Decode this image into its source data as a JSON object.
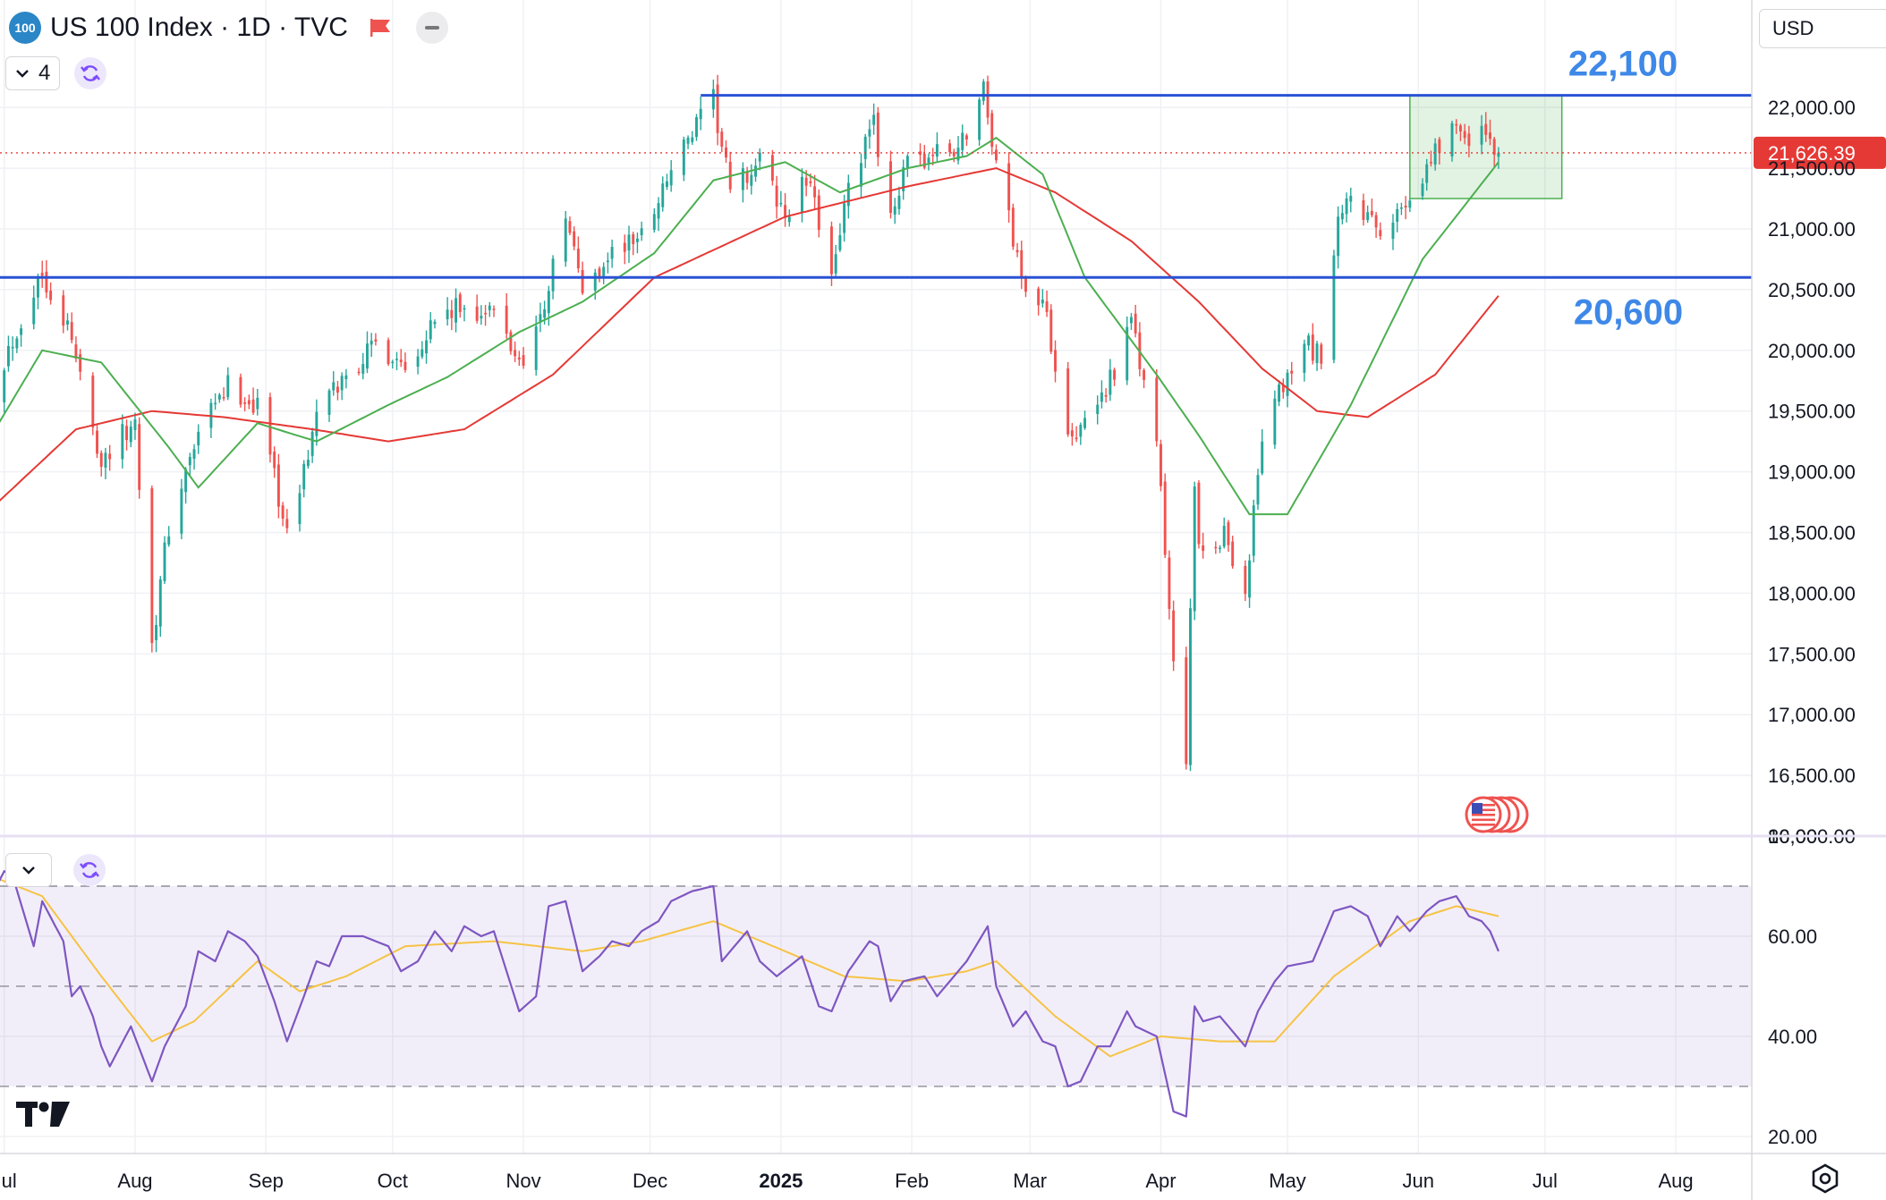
{
  "header": {
    "symbol_badge": "100",
    "title": "US 100 Index · 1D · TVC",
    "indicator_count": "4",
    "currency": "USD"
  },
  "icons": {
    "flag": "red-flag-icon",
    "minus": "minus-icon",
    "chevron": "chevron-down-icon",
    "sync": "sync-icon",
    "events": "us-flag-events-icon",
    "logo": "tradingview-logo-icon",
    "settings": "gear-icon"
  },
  "colors": {
    "up": "#26a69a",
    "down": "#ef5350",
    "ma_fast": "#4caf50",
    "ma_slow": "#e53935",
    "level_line": "#2a52d4",
    "level_text": "#3e88e8",
    "rsi": "#7e57c2",
    "rsi_ma": "#f6c344",
    "price_tag": "#e53935",
    "box": "#4caf50"
  },
  "chart_data": [
    {
      "type": "candlestick",
      "title": "US 100 Index · 1D · TVC",
      "x_tick_labels": [
        "Jul",
        "Aug",
        "Sep",
        "Oct",
        "Nov",
        "Dec",
        "2025",
        "Feb",
        "Mar",
        "Apr",
        "May",
        "Jun",
        "Jul",
        "Aug"
      ],
      "x_range": [
        "2024-06-30",
        "2025-08-19"
      ],
      "y_tick_labels": [
        "22,000.00",
        "21,500.00",
        "21,000.00",
        "20,500.00",
        "20,000.00",
        "19,500.00",
        "19,000.00",
        "18,500.00",
        "18,000.00",
        "17,500.00",
        "17,000.00",
        "16,500.00",
        "16,000.00"
      ],
      "ylim": [
        16000,
        22885
      ],
      "grid": true,
      "last_price": 21626.39,
      "last_price_label": "21,626.39",
      "anchors": [
        [
          "2024-06-28",
          19700
        ],
        [
          "2024-07-10",
          20650
        ],
        [
          "2024-07-16",
          20200
        ],
        [
          "2024-07-24",
          19100
        ],
        [
          "2024-08-01",
          19400
        ],
        [
          "2024-08-05",
          17600
        ],
        [
          "2024-08-09",
          18550
        ],
        [
          "2024-08-16",
          19300
        ],
        [
          "2024-08-23",
          19700
        ],
        [
          "2024-08-30",
          19550
        ],
        [
          "2024-09-03",
          19000
        ],
        [
          "2024-09-06",
          18450
        ],
        [
          "2024-09-13",
          19450
        ],
        [
          "2024-09-20",
          19800
        ],
        [
          "2024-09-27",
          20050
        ],
        [
          "2024-10-04",
          19900
        ],
        [
          "2024-10-11",
          20250
        ],
        [
          "2024-10-18",
          20350
        ],
        [
          "2024-10-25",
          20300
        ],
        [
          "2024-10-31",
          19900
        ],
        [
          "2024-11-05",
          20250
        ],
        [
          "2024-11-11",
          21100
        ],
        [
          "2024-11-15",
          20500
        ],
        [
          "2024-11-22",
          20800
        ],
        [
          "2024-11-29",
          20950
        ],
        [
          "2024-12-06",
          21500
        ],
        [
          "2024-12-16",
          22050
        ],
        [
          "2024-12-20",
          21300
        ],
        [
          "2024-12-27",
          21550
        ],
        [
          "2025-01-02",
          21100
        ],
        [
          "2025-01-07",
          21400
        ],
        [
          "2025-01-13",
          20700
        ],
        [
          "2025-01-17",
          21300
        ],
        [
          "2025-01-23",
          21850
        ],
        [
          "2025-01-27",
          21150
        ],
        [
          "2025-01-31",
          21500
        ],
        [
          "2025-02-05",
          21600
        ],
        [
          "2025-02-12",
          21650
        ],
        [
          "2025-02-18",
          22150
        ],
        [
          "2025-02-21",
          21550
        ],
        [
          "2025-02-27",
          20600
        ],
        [
          "2025-03-04",
          20400
        ],
        [
          "2025-03-10",
          19400
        ],
        [
          "2025-03-13",
          19300
        ],
        [
          "2025-03-19",
          19700
        ],
        [
          "2025-03-25",
          20200
        ],
        [
          "2025-03-31",
          19250
        ],
        [
          "2025-04-04",
          17400
        ],
        [
          "2025-04-07",
          16700
        ],
        [
          "2025-04-09",
          18900
        ],
        [
          "2025-04-10",
          18300
        ],
        [
          "2025-04-16",
          18500
        ],
        [
          "2025-04-21",
          18000
        ],
        [
          "2025-04-25",
          19300
        ],
        [
          "2025-04-30",
          19700
        ],
        [
          "2025-05-06",
          20050
        ],
        [
          "2025-05-09",
          19900
        ],
        [
          "2025-05-13",
          21000
        ],
        [
          "2025-05-16",
          21300
        ],
        [
          "2025-05-23",
          20900
        ],
        [
          "2025-05-30",
          21300
        ],
        [
          "2025-06-06",
          21700
        ],
        [
          "2025-06-11",
          21900
        ],
        [
          "2025-06-13",
          21650
        ],
        [
          "2025-06-17",
          21800
        ],
        [
          "2025-06-20",
          21626
        ]
      ],
      "ma_fast_anchors": [
        [
          "2024-06-28",
          19300
        ],
        [
          "2024-07-10",
          20000
        ],
        [
          "2024-07-24",
          19900
        ],
        [
          "2024-08-09",
          19200
        ],
        [
          "2024-08-16",
          18870
        ],
        [
          "2024-08-30",
          19400
        ],
        [
          "2024-09-13",
          19250
        ],
        [
          "2024-09-30",
          19550
        ],
        [
          "2024-10-14",
          19780
        ],
        [
          "2024-10-31",
          20150
        ],
        [
          "2024-11-15",
          20400
        ],
        [
          "2024-12-02",
          20800
        ],
        [
          "2024-12-16",
          21400
        ],
        [
          "2025-01-02",
          21550
        ],
        [
          "2025-01-15",
          21300
        ],
        [
          "2025-01-31",
          21500
        ],
        [
          "2025-02-14",
          21600
        ],
        [
          "2025-02-21",
          21750
        ],
        [
          "2025-03-04",
          21450
        ],
        [
          "2025-03-14",
          20600
        ],
        [
          "2025-03-31",
          19800
        ],
        [
          "2025-04-10",
          19300
        ],
        [
          "2025-04-22",
          18650
        ],
        [
          "2025-05-01",
          18650
        ],
        [
          "2025-05-16",
          19550
        ],
        [
          "2025-06-02",
          20750
        ],
        [
          "2025-06-20",
          21550
        ]
      ],
      "ma_slow_anchors": [
        [
          "2024-06-28",
          18700
        ],
        [
          "2024-07-18",
          19350
        ],
        [
          "2024-08-05",
          19500
        ],
        [
          "2024-08-22",
          19450
        ],
        [
          "2024-09-12",
          19350
        ],
        [
          "2024-09-30",
          19250
        ],
        [
          "2024-10-18",
          19350
        ],
        [
          "2024-11-08",
          19800
        ],
        [
          "2024-12-02",
          20600
        ],
        [
          "2025-01-02",
          21100
        ],
        [
          "2025-01-31",
          21350
        ],
        [
          "2025-02-21",
          21500
        ],
        [
          "2025-03-07",
          21300
        ],
        [
          "2025-03-25",
          20900
        ],
        [
          "2025-04-10",
          20400
        ],
        [
          "2025-04-25",
          19850
        ],
        [
          "2025-05-08",
          19500
        ],
        [
          "2025-05-20",
          19450
        ],
        [
          "2025-06-05",
          19800
        ],
        [
          "2025-06-20",
          20450
        ]
      ],
      "levels": [
        {
          "label": "22,100",
          "value": 22100,
          "from": "2024-12-13",
          "to": "2025-08-19"
        },
        {
          "label": "20,600",
          "value": 20600,
          "from": "2024-06-30",
          "to": "2025-08-19"
        }
      ],
      "range_box": {
        "x0": "2025-05-30",
        "x1": "2025-07-05",
        "y0": 21250,
        "y1": 22100
      }
    },
    {
      "type": "line",
      "y_tick_labels": [
        "80.00",
        "60.00",
        "40.00",
        "20.00"
      ],
      "ylim": [
        16.6,
        80
      ],
      "band": [
        30,
        70
      ],
      "midline": 50,
      "rsi_anchors": [
        [
          "2024-06-28",
          68
        ],
        [
          "2024-07-01",
          73
        ],
        [
          "2024-07-03",
          72
        ],
        [
          "2024-07-08",
          58
        ],
        [
          "2024-07-10",
          67
        ],
        [
          "2024-07-15",
          59
        ],
        [
          "2024-07-17",
          48
        ],
        [
          "2024-07-19",
          50
        ],
        [
          "2024-07-22",
          44
        ],
        [
          "2024-07-24",
          38
        ],
        [
          "2024-07-26",
          34
        ],
        [
          "2024-07-31",
          42
        ],
        [
          "2024-08-05",
          31
        ],
        [
          "2024-08-08",
          38
        ],
        [
          "2024-08-13",
          46
        ],
        [
          "2024-08-16",
          57
        ],
        [
          "2024-08-20",
          55
        ],
        [
          "2024-08-23",
          61
        ],
        [
          "2024-08-27",
          59
        ],
        [
          "2024-08-30",
          56
        ],
        [
          "2024-09-03",
          47
        ],
        [
          "2024-09-06",
          39
        ],
        [
          "2024-09-10",
          48
        ],
        [
          "2024-09-13",
          55
        ],
        [
          "2024-09-16",
          54
        ],
        [
          "2024-09-19",
          60
        ],
        [
          "2024-09-24",
          60
        ],
        [
          "2024-09-30",
          58
        ],
        [
          "2024-10-03",
          53
        ],
        [
          "2024-10-07",
          55
        ],
        [
          "2024-10-11",
          61
        ],
        [
          "2024-10-15",
          57
        ],
        [
          "2024-10-18",
          62
        ],
        [
          "2024-10-22",
          60
        ],
        [
          "2024-10-25",
          61
        ],
        [
          "2024-10-31",
          45
        ],
        [
          "2024-11-04",
          48
        ],
        [
          "2024-11-07",
          66
        ],
        [
          "2024-11-11",
          67
        ],
        [
          "2024-11-15",
          53
        ],
        [
          "2024-11-19",
          56
        ],
        [
          "2024-11-22",
          59
        ],
        [
          "2024-11-26",
          58
        ],
        [
          "2024-11-29",
          61
        ],
        [
          "2024-12-03",
          63
        ],
        [
          "2024-12-06",
          67
        ],
        [
          "2024-12-11",
          69
        ],
        [
          "2024-12-16",
          70
        ],
        [
          "2024-12-18",
          55
        ],
        [
          "2024-12-20",
          57
        ],
        [
          "2024-12-24",
          61
        ],
        [
          "2024-12-27",
          55
        ],
        [
          "2024-12-31",
          52
        ],
        [
          "2025-01-06",
          56
        ],
        [
          "2025-01-10",
          46
        ],
        [
          "2025-01-13",
          45
        ],
        [
          "2025-01-17",
          53
        ],
        [
          "2025-01-22",
          59
        ],
        [
          "2025-01-24",
          58
        ],
        [
          "2025-01-27",
          47
        ],
        [
          "2025-01-30",
          51
        ],
        [
          "2025-02-04",
          52
        ],
        [
          "2025-02-07",
          48
        ],
        [
          "2025-02-11",
          52
        ],
        [
          "2025-02-14",
          55
        ],
        [
          "2025-02-19",
          62
        ],
        [
          "2025-02-21",
          50
        ],
        [
          "2025-02-25",
          42
        ],
        [
          "2025-02-28",
          45
        ],
        [
          "2025-03-04",
          39
        ],
        [
          "2025-03-07",
          38
        ],
        [
          "2025-03-10",
          30
        ],
        [
          "2025-03-13",
          31
        ],
        [
          "2025-03-17",
          38
        ],
        [
          "2025-03-20",
          38
        ],
        [
          "2025-03-24",
          45
        ],
        [
          "2025-03-26",
          42
        ],
        [
          "2025-03-31",
          40
        ],
        [
          "2025-04-04",
          25
        ],
        [
          "2025-04-07",
          24
        ],
        [
          "2025-04-09",
          46
        ],
        [
          "2025-04-11",
          43
        ],
        [
          "2025-04-15",
          44
        ],
        [
          "2025-04-21",
          38
        ],
        [
          "2025-04-24",
          45
        ],
        [
          "2025-04-28",
          51
        ],
        [
          "2025-05-01",
          54
        ],
        [
          "2025-05-07",
          55
        ],
        [
          "2025-05-12",
          65
        ],
        [
          "2025-05-16",
          66
        ],
        [
          "2025-05-20",
          64
        ],
        [
          "2025-05-23",
          58
        ],
        [
          "2025-05-27",
          64
        ],
        [
          "2025-05-30",
          61
        ],
        [
          "2025-06-03",
          65
        ],
        [
          "2025-06-06",
          67
        ],
        [
          "2025-06-10",
          68
        ],
        [
          "2025-06-13",
          64
        ],
        [
          "2025-06-16",
          63
        ],
        [
          "2025-06-18",
          61
        ],
        [
          "2025-06-20",
          57
        ]
      ],
      "rsi_ma_anchors": [
        [
          "2024-06-28",
          72
        ],
        [
          "2024-07-10",
          68
        ],
        [
          "2024-07-24",
          52
        ],
        [
          "2024-08-05",
          39
        ],
        [
          "2024-08-15",
          43
        ],
        [
          "2024-08-30",
          55
        ],
        [
          "2024-09-09",
          49
        ],
        [
          "2024-09-20",
          52
        ],
        [
          "2024-10-04",
          58
        ],
        [
          "2024-10-25",
          59
        ],
        [
          "2024-11-15",
          57
        ],
        [
          "2024-11-29",
          59
        ],
        [
          "2024-12-16",
          63
        ],
        [
          "2025-01-02",
          57
        ],
        [
          "2025-01-16",
          52
        ],
        [
          "2025-01-31",
          51
        ],
        [
          "2025-02-14",
          53
        ],
        [
          "2025-02-21",
          55
        ],
        [
          "2025-03-07",
          44
        ],
        [
          "2025-03-20",
          36
        ],
        [
          "2025-04-01",
          40
        ],
        [
          "2025-04-15",
          39
        ],
        [
          "2025-04-28",
          39
        ],
        [
          "2025-05-12",
          52
        ],
        [
          "2025-05-30",
          63
        ],
        [
          "2025-06-10",
          66
        ],
        [
          "2025-06-20",
          64
        ]
      ]
    }
  ]
}
